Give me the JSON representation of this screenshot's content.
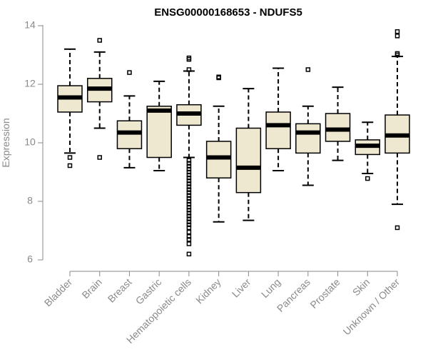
{
  "chart_data": {
    "type": "boxplot",
    "title": "ENSG00000168653 - NDUFS5",
    "xlabel": "",
    "ylabel": "Expression",
    "ylim": [
      6,
      14
    ],
    "yticks": [
      6,
      8,
      10,
      12,
      14
    ],
    "box_color": "#efe8d0",
    "categories": [
      "Bladder",
      "Brain",
      "Breast",
      "Gastric",
      "Hematopoietic cells",
      "Kidney",
      "Liver",
      "Lung",
      "Pancreas",
      "Prostate",
      "Skin",
      "Unknown / Other"
    ],
    "boxes": [
      {
        "whisker_low": 9.65,
        "q1": 11.05,
        "median": 11.55,
        "q3": 11.95,
        "whisker_high": 13.2,
        "outliers": [
          9.5,
          9.22
        ]
      },
      {
        "whisker_low": 10.5,
        "q1": 11.4,
        "median": 11.85,
        "q3": 12.2,
        "whisker_high": 13.1,
        "outliers": [
          13.5,
          9.5
        ]
      },
      {
        "whisker_low": 9.15,
        "q1": 9.8,
        "median": 10.35,
        "q3": 10.75,
        "whisker_high": 11.6,
        "outliers": [
          12.4
        ]
      },
      {
        "whisker_low": 9.05,
        "q1": 9.5,
        "median": 11.1,
        "q3": 11.25,
        "whisker_high": 12.1,
        "outliers": []
      },
      {
        "whisker_low": 9.5,
        "q1": 10.6,
        "median": 11.0,
        "q3": 11.3,
        "whisker_high": 12.45,
        "outliers": [
          12.9,
          12.85,
          12.5,
          9.4,
          9.3,
          9.2,
          9.1,
          9.0,
          8.9,
          8.8,
          8.7,
          8.6,
          8.5,
          8.4,
          8.3,
          8.2,
          8.1,
          8.0,
          7.9,
          7.8,
          7.7,
          7.6,
          7.5,
          7.4,
          7.3,
          7.2,
          7.1,
          6.95,
          6.8,
          6.7,
          6.55,
          6.2
        ]
      },
      {
        "whisker_low": 7.3,
        "q1": 8.8,
        "median": 9.5,
        "q3": 10.05,
        "whisker_high": 11.25,
        "outliers": [
          12.25,
          12.22
        ]
      },
      {
        "whisker_low": 7.35,
        "q1": 8.3,
        "median": 9.15,
        "q3": 10.5,
        "whisker_high": 11.85,
        "outliers": []
      },
      {
        "whisker_low": 9.05,
        "q1": 9.8,
        "median": 10.6,
        "q3": 11.05,
        "whisker_high": 12.55,
        "outliers": []
      },
      {
        "whisker_low": 8.55,
        "q1": 9.65,
        "median": 10.35,
        "q3": 10.65,
        "whisker_high": 11.25,
        "outliers": [
          12.5
        ]
      },
      {
        "whisker_low": 9.4,
        "q1": 10.05,
        "median": 10.45,
        "q3": 11.0,
        "whisker_high": 11.9,
        "outliers": []
      },
      {
        "whisker_low": 8.95,
        "q1": 9.6,
        "median": 9.9,
        "q3": 10.1,
        "whisker_high": 10.7,
        "outliers": [
          8.78
        ]
      },
      {
        "whisker_low": 7.9,
        "q1": 9.65,
        "median": 10.25,
        "q3": 10.95,
        "whisker_high": 12.95,
        "outliers": [
          13.8,
          13.65,
          13.05,
          13.0,
          7.1
        ]
      }
    ]
  }
}
